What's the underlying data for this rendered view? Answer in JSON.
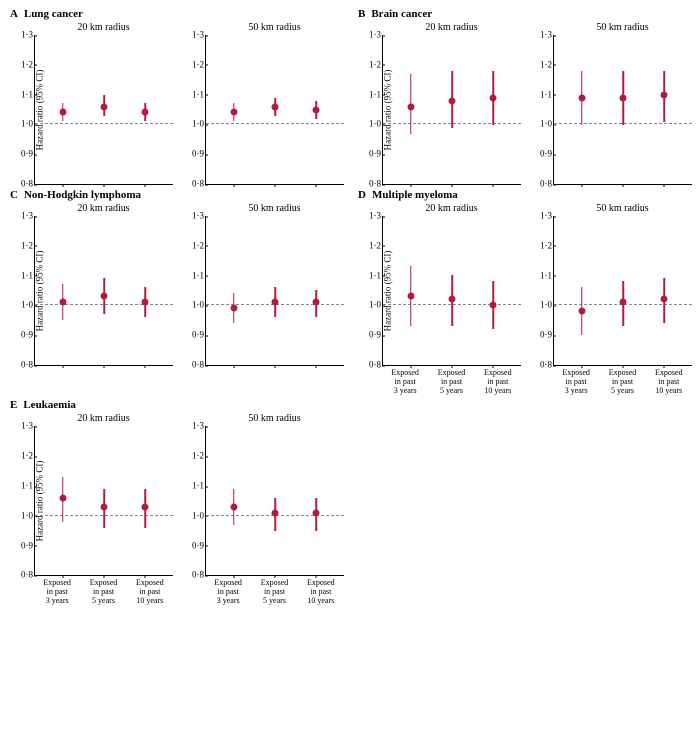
{
  "ylim": [
    0.8,
    1.3
  ],
  "yticks": [
    0.8,
    0.9,
    1.0,
    1.1,
    1.2,
    1.3
  ],
  "ytick_labels": [
    "0·8",
    "0·9",
    "1·0",
    "1·1",
    "1·2",
    "1·3"
  ],
  "reference": 1.0,
  "y_axis_label": "Hazard ratio (95% CI)",
  "point_color": "#b01c3f",
  "grid_dash_color": "#888888",
  "background_color": "#ffffff",
  "x_categories": [
    "Exposed\nin past\n3 years",
    "Exposed\nin past\n5 years",
    "Exposed\nin past\n10 years"
  ],
  "sub_titles": [
    "20 km radius",
    "50 km radius"
  ],
  "panels": [
    {
      "letter": "A",
      "title": "Lung cancer",
      "show_x_labels": false,
      "subs": [
        [
          {
            "hr": 1.04,
            "lo": 1.01,
            "hi": 1.07
          },
          {
            "hr": 1.06,
            "lo": 1.03,
            "hi": 1.1
          },
          {
            "hr": 1.04,
            "lo": 1.01,
            "hi": 1.07
          }
        ],
        [
          {
            "hr": 1.04,
            "lo": 1.01,
            "hi": 1.07
          },
          {
            "hr": 1.06,
            "lo": 1.03,
            "hi": 1.09
          },
          {
            "hr": 1.05,
            "lo": 1.02,
            "hi": 1.08
          }
        ]
      ]
    },
    {
      "letter": "B",
      "title": "Brain cancer",
      "show_x_labels": false,
      "subs": [
        [
          {
            "hr": 1.06,
            "lo": 0.97,
            "hi": 1.17
          },
          {
            "hr": 1.08,
            "lo": 0.99,
            "hi": 1.18
          },
          {
            "hr": 1.09,
            "lo": 1.0,
            "hi": 1.18
          }
        ],
        [
          {
            "hr": 1.09,
            "lo": 1.0,
            "hi": 1.18
          },
          {
            "hr": 1.09,
            "lo": 1.0,
            "hi": 1.18
          },
          {
            "hr": 1.1,
            "lo": 1.01,
            "hi": 1.18
          }
        ]
      ]
    },
    {
      "letter": "C",
      "title": "Non-Hodgkin lymphoma",
      "show_x_labels": false,
      "subs": [
        [
          {
            "hr": 1.01,
            "lo": 0.95,
            "hi": 1.07
          },
          {
            "hr": 1.03,
            "lo": 0.97,
            "hi": 1.09
          },
          {
            "hr": 1.01,
            "lo": 0.96,
            "hi": 1.06
          }
        ],
        [
          {
            "hr": 0.99,
            "lo": 0.94,
            "hi": 1.04
          },
          {
            "hr": 1.01,
            "lo": 0.96,
            "hi": 1.06
          },
          {
            "hr": 1.01,
            "lo": 0.96,
            "hi": 1.05
          }
        ]
      ]
    },
    {
      "letter": "D",
      "title": "Multiple myeloma",
      "show_x_labels": true,
      "subs": [
        [
          {
            "hr": 1.03,
            "lo": 0.93,
            "hi": 1.13
          },
          {
            "hr": 1.02,
            "lo": 0.93,
            "hi": 1.1
          },
          {
            "hr": 1.0,
            "lo": 0.92,
            "hi": 1.08
          }
        ],
        [
          {
            "hr": 0.98,
            "lo": 0.9,
            "hi": 1.06
          },
          {
            "hr": 1.01,
            "lo": 0.93,
            "hi": 1.08
          },
          {
            "hr": 1.02,
            "lo": 0.94,
            "hi": 1.09
          }
        ]
      ]
    },
    {
      "letter": "E",
      "title": "Leukaemia",
      "show_x_labels": true,
      "subs": [
        [
          {
            "hr": 1.06,
            "lo": 0.98,
            "hi": 1.13
          },
          {
            "hr": 1.03,
            "lo": 0.96,
            "hi": 1.09
          },
          {
            "hr": 1.03,
            "lo": 0.96,
            "hi": 1.09
          }
        ],
        [
          {
            "hr": 1.03,
            "lo": 0.97,
            "hi": 1.09
          },
          {
            "hr": 1.01,
            "lo": 0.95,
            "hi": 1.06
          },
          {
            "hr": 1.01,
            "lo": 0.95,
            "hi": 1.06
          }
        ]
      ]
    }
  ]
}
